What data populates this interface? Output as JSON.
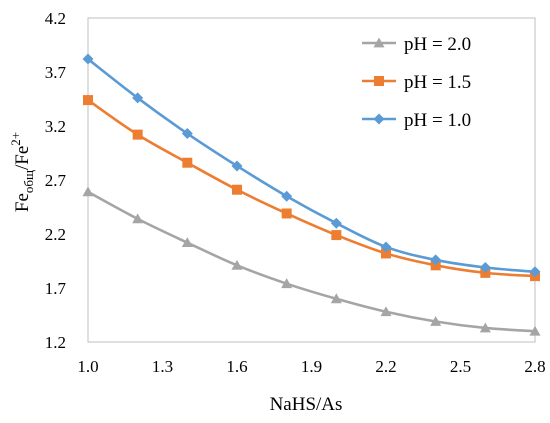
{
  "chart_data": {
    "type": "line",
    "xlabel": "NaHS/As",
    "ylabel": {
      "base": "Fe",
      "sub": "общ",
      "slash": "/Fe",
      "sup": "2+"
    },
    "xlim": [
      1.0,
      2.8
    ],
    "ylim": [
      1.2,
      4.2
    ],
    "x_ticks": [
      "1.0",
      "1.3",
      "1.6",
      "1.9",
      "2.2",
      "2.5",
      "2.8"
    ],
    "y_ticks": [
      "1.2",
      "1.7",
      "2.2",
      "2.7",
      "3.2",
      "3.7",
      "4.2"
    ],
    "grid": false,
    "legend_position": "top-right",
    "x": [
      1.0,
      1.2,
      1.4,
      1.6,
      1.8,
      2.0,
      2.2,
      2.4,
      2.6,
      2.8
    ],
    "series": [
      {
        "name": "pH = 2.0",
        "color": "#a5a5a5",
        "marker": "triangle",
        "values": [
          2.59,
          2.34,
          2.12,
          1.91,
          1.74,
          1.6,
          1.48,
          1.39,
          1.33,
          1.3
        ]
      },
      {
        "name": "pH = 1.5",
        "color": "#ed7d31",
        "marker": "square",
        "values": [
          3.44,
          3.12,
          2.86,
          2.61,
          2.39,
          2.19,
          2.02,
          1.91,
          1.84,
          1.81
        ]
      },
      {
        "name": "pH = 1.0",
        "color": "#5b9bd5",
        "marker": "diamond",
        "values": [
          3.82,
          3.46,
          3.13,
          2.83,
          2.55,
          2.3,
          2.08,
          1.96,
          1.89,
          1.85
        ]
      }
    ]
  }
}
